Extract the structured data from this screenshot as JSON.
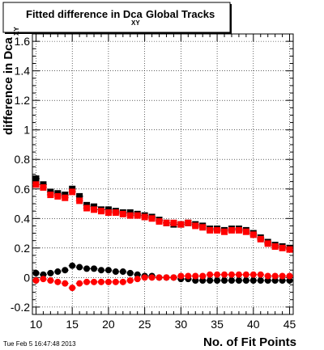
{
  "chart_data": {
    "type": "scatter",
    "title": "Fitted difference in Dca",
    "title_subscript": "XY",
    "title_suffix": "Global Tracks",
    "xlabel": "No. of Fit Points",
    "ylabel": "difference in Dca",
    "ylabel_subscript": "XY",
    "xlim": [
      9.5,
      45.5
    ],
    "ylim": [
      -0.25,
      1.65
    ],
    "x_ticks": [
      10,
      15,
      20,
      25,
      30,
      35,
      40,
      45
    ],
    "y_ticks": [
      -0.2,
      0,
      0.2,
      0.4,
      0.6,
      0.8,
      1,
      1.2,
      1.4,
      1.6
    ],
    "y_tick_labels": [
      "-0.2",
      "0",
      "0.2",
      "0.4",
      "0.6",
      "0.8",
      "1",
      "1.2",
      "1.4",
      "1.6"
    ],
    "grid": true,
    "x": [
      10,
      11,
      12,
      13,
      14,
      15,
      16,
      17,
      18,
      19,
      20,
      21,
      22,
      23,
      24,
      25,
      26,
      27,
      28,
      29,
      30,
      31,
      32,
      33,
      34,
      35,
      36,
      37,
      38,
      39,
      40,
      41,
      42,
      43,
      44,
      45
    ],
    "series": [
      {
        "marker": "square",
        "color": "#000000",
        "values": [
          0.67,
          0.63,
          0.58,
          0.57,
          0.56,
          0.6,
          0.55,
          0.49,
          0.48,
          0.46,
          0.46,
          0.45,
          0.44,
          0.44,
          0.43,
          0.42,
          0.41,
          0.39,
          0.37,
          0.36,
          0.36,
          0.37,
          0.36,
          0.35,
          0.33,
          0.33,
          0.32,
          0.33,
          0.33,
          0.32,
          0.3,
          0.27,
          0.24,
          0.22,
          0.21,
          0.2
        ]
      },
      {
        "marker": "square",
        "color": "#ff0000",
        "values": [
          0.63,
          0.61,
          0.56,
          0.55,
          0.54,
          0.58,
          0.52,
          0.47,
          0.46,
          0.45,
          0.44,
          0.44,
          0.43,
          0.42,
          0.42,
          0.41,
          0.4,
          0.38,
          0.37,
          0.37,
          0.36,
          0.37,
          0.35,
          0.34,
          0.32,
          0.32,
          0.31,
          0.32,
          0.32,
          0.31,
          0.29,
          0.26,
          0.23,
          0.21,
          0.2,
          0.19
        ]
      },
      {
        "marker": "circle",
        "color": "#000000",
        "values": [
          0.03,
          0.02,
          0.03,
          0.04,
          0.05,
          0.08,
          0.07,
          0.06,
          0.06,
          0.05,
          0.05,
          0.04,
          0.04,
          0.03,
          0.02,
          0.01,
          0.01,
          0.0,
          0.0,
          0.0,
          -0.01,
          -0.01,
          -0.02,
          -0.02,
          -0.02,
          -0.02,
          -0.02,
          -0.02,
          -0.02,
          -0.02,
          -0.02,
          -0.02,
          -0.02,
          -0.02,
          -0.02,
          -0.02
        ]
      },
      {
        "marker": "circle",
        "color": "#ff0000",
        "values": [
          -0.02,
          -0.01,
          -0.02,
          -0.03,
          -0.04,
          -0.07,
          -0.04,
          -0.03,
          -0.03,
          -0.03,
          -0.03,
          -0.03,
          -0.03,
          -0.02,
          -0.01,
          0.0,
          0.0,
          0.0,
          0.0,
          0.0,
          0.01,
          0.01,
          0.01,
          0.01,
          0.02,
          0.02,
          0.02,
          0.02,
          0.02,
          0.02,
          0.02,
          0.02,
          0.01,
          0.01,
          0.01,
          0.01
        ]
      }
    ]
  },
  "footer": {
    "timestamp": "Tue Feb  5 16:47:48 2013"
  },
  "colors": {
    "background": "#ffffff",
    "frame": "#000000",
    "grid": "#000000"
  }
}
